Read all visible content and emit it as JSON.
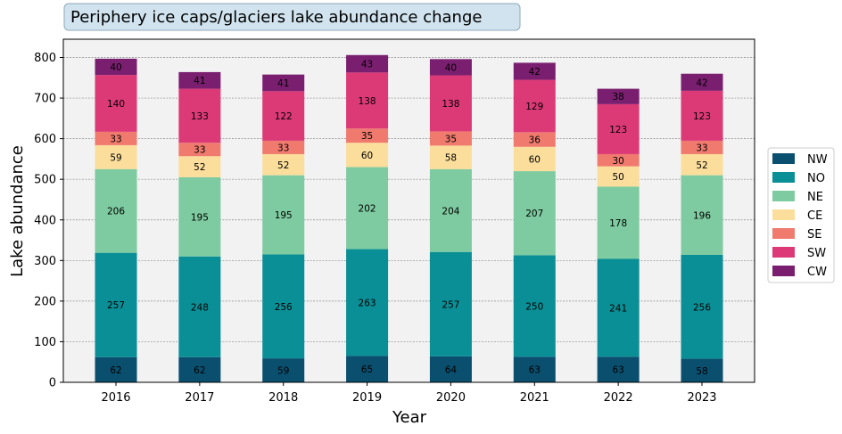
{
  "chart_data": {
    "type": "bar",
    "stacked": true,
    "title": "Periphery ice caps/glaciers lake abundance change",
    "xlabel": "Year",
    "ylabel": "Lake abundance",
    "categories": [
      "2016",
      "2017",
      "2018",
      "2019",
      "2020",
      "2021",
      "2022",
      "2023"
    ],
    "ylim": [
      0,
      845
    ],
    "yticks": [
      0,
      100,
      200,
      300,
      400,
      500,
      600,
      700,
      800
    ],
    "grid": true,
    "legend_position": "right",
    "series": [
      {
        "name": "NW",
        "color": "#0a4f6e",
        "values": [
          62,
          62,
          59,
          65,
          64,
          63,
          63,
          58
        ]
      },
      {
        "name": "NO",
        "color": "#0a8f96",
        "values": [
          257,
          248,
          256,
          263,
          257,
          250,
          241,
          256
        ]
      },
      {
        "name": "NE",
        "color": "#7ecba1",
        "values": [
          206,
          195,
          195,
          202,
          204,
          207,
          178,
          196
        ]
      },
      {
        "name": "CE",
        "color": "#fbde9c",
        "values": [
          59,
          52,
          52,
          60,
          58,
          60,
          50,
          52
        ]
      },
      {
        "name": "SE",
        "color": "#f07a6e",
        "values": [
          33,
          33,
          33,
          35,
          35,
          36,
          30,
          33
        ]
      },
      {
        "name": "SW",
        "color": "#dc3977",
        "values": [
          140,
          133,
          122,
          138,
          138,
          129,
          123,
          123
        ]
      },
      {
        "name": "CW",
        "color": "#7a1f6f",
        "values": [
          40,
          41,
          41,
          43,
          40,
          42,
          38,
          42
        ]
      }
    ]
  }
}
